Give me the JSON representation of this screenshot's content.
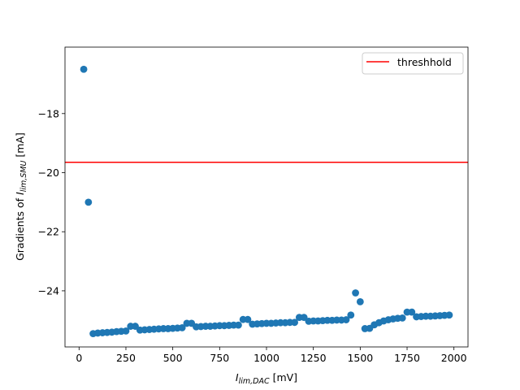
{
  "chart_data": {
    "type": "scatter",
    "title": "",
    "xlabel": {
      "main": "I",
      "sub": "lim,DAC",
      "unit": " [mV]"
    },
    "ylabel": {
      "prefix": "Gradients of ",
      "main": "I",
      "sub": "lim,SMU",
      "unit": " [mA]"
    },
    "xlim": [
      -75,
      2075
    ],
    "ylim": [
      -25.9,
      -15.75
    ],
    "x_ticks": [
      0,
      250,
      500,
      750,
      1000,
      1250,
      1500,
      1750,
      2000
    ],
    "y_ticks": [
      -24,
      -22,
      -20,
      -18
    ],
    "x_tick_labels": [
      "0",
      "250",
      "500",
      "750",
      "1000",
      "1250",
      "1500",
      "1750",
      "2000"
    ],
    "y_tick_labels": [
      "−24",
      "−22",
      "−20",
      "−18"
    ],
    "grid": false,
    "legend": {
      "position": "upper right",
      "entries": [
        "threshhold"
      ]
    },
    "threshold": {
      "name": "threshhold",
      "y": -19.65,
      "color": "#ff0000"
    },
    "series": [
      {
        "color": "#1f77b4",
        "x": [
          25,
          50,
          75,
          100,
          125,
          150,
          175,
          200,
          225,
          250,
          275,
          300,
          325,
          350,
          375,
          400,
          425,
          450,
          475,
          500,
          525,
          550,
          575,
          600,
          625,
          650,
          675,
          700,
          725,
          750,
          775,
          800,
          825,
          850,
          875,
          900,
          925,
          950,
          975,
          1000,
          1025,
          1050,
          1075,
          1100,
          1125,
          1150,
          1175,
          1200,
          1225,
          1250,
          1275,
          1300,
          1325,
          1350,
          1375,
          1400,
          1425,
          1450,
          1475,
          1500,
          1525,
          1550,
          1575,
          1600,
          1625,
          1650,
          1675,
          1700,
          1725,
          1750,
          1775,
          1800,
          1825,
          1850,
          1875,
          1900,
          1925,
          1950,
          1975
        ],
        "y": [
          -16.5,
          -21.0,
          -25.45,
          -25.43,
          -25.42,
          -25.41,
          -25.4,
          -25.38,
          -25.37,
          -25.36,
          -25.2,
          -25.2,
          -25.33,
          -25.32,
          -25.31,
          -25.3,
          -25.29,
          -25.28,
          -25.28,
          -25.27,
          -25.26,
          -25.25,
          -25.1,
          -25.1,
          -25.22,
          -25.21,
          -25.2,
          -25.2,
          -25.19,
          -25.18,
          -25.18,
          -25.17,
          -25.16,
          -25.16,
          -24.97,
          -24.97,
          -25.13,
          -25.12,
          -25.11,
          -25.1,
          -25.1,
          -25.09,
          -25.08,
          -25.08,
          -25.07,
          -25.07,
          -24.9,
          -24.9,
          -25.03,
          -25.02,
          -25.02,
          -25.01,
          -25.0,
          -25.0,
          -24.99,
          -24.99,
          -24.98,
          -24.82,
          -24.07,
          -24.37,
          -25.28,
          -25.27,
          -25.15,
          -25.08,
          -25.02,
          -24.98,
          -24.95,
          -24.93,
          -24.92,
          -24.72,
          -24.72,
          -24.88,
          -24.87,
          -24.86,
          -24.86,
          -24.85,
          -24.84,
          -24.83,
          -24.82
        ]
      }
    ]
  }
}
